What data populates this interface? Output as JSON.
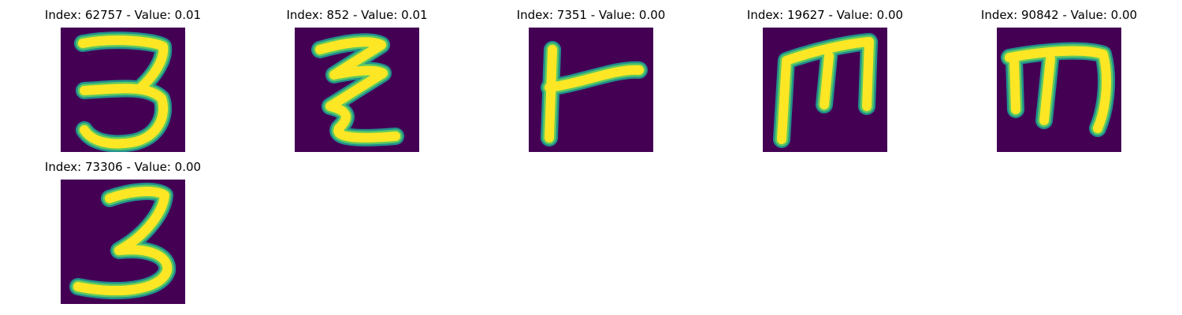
{
  "colors": {
    "background": "#440154",
    "stroke_edge": "#21918c",
    "stroke_mid": "#5ec962",
    "stroke_core": "#fde725"
  },
  "panels": [
    {
      "title": "Index: 62757 - Value: 0.01",
      "glyph": "3"
    },
    {
      "title": "Index: 852 - Value: 0.01",
      "glyph": "z"
    },
    {
      "title": "Index: 7351 - Value: 0.00",
      "glyph": "r"
    },
    {
      "title": "Index: 19627 - Value: 0.00",
      "glyph": "m"
    },
    {
      "title": "Index: 90842 - Value: 0.00",
      "glyph": "m"
    },
    {
      "title": "Index: 73306 - Value: 0.00",
      "glyph": "3"
    }
  ]
}
